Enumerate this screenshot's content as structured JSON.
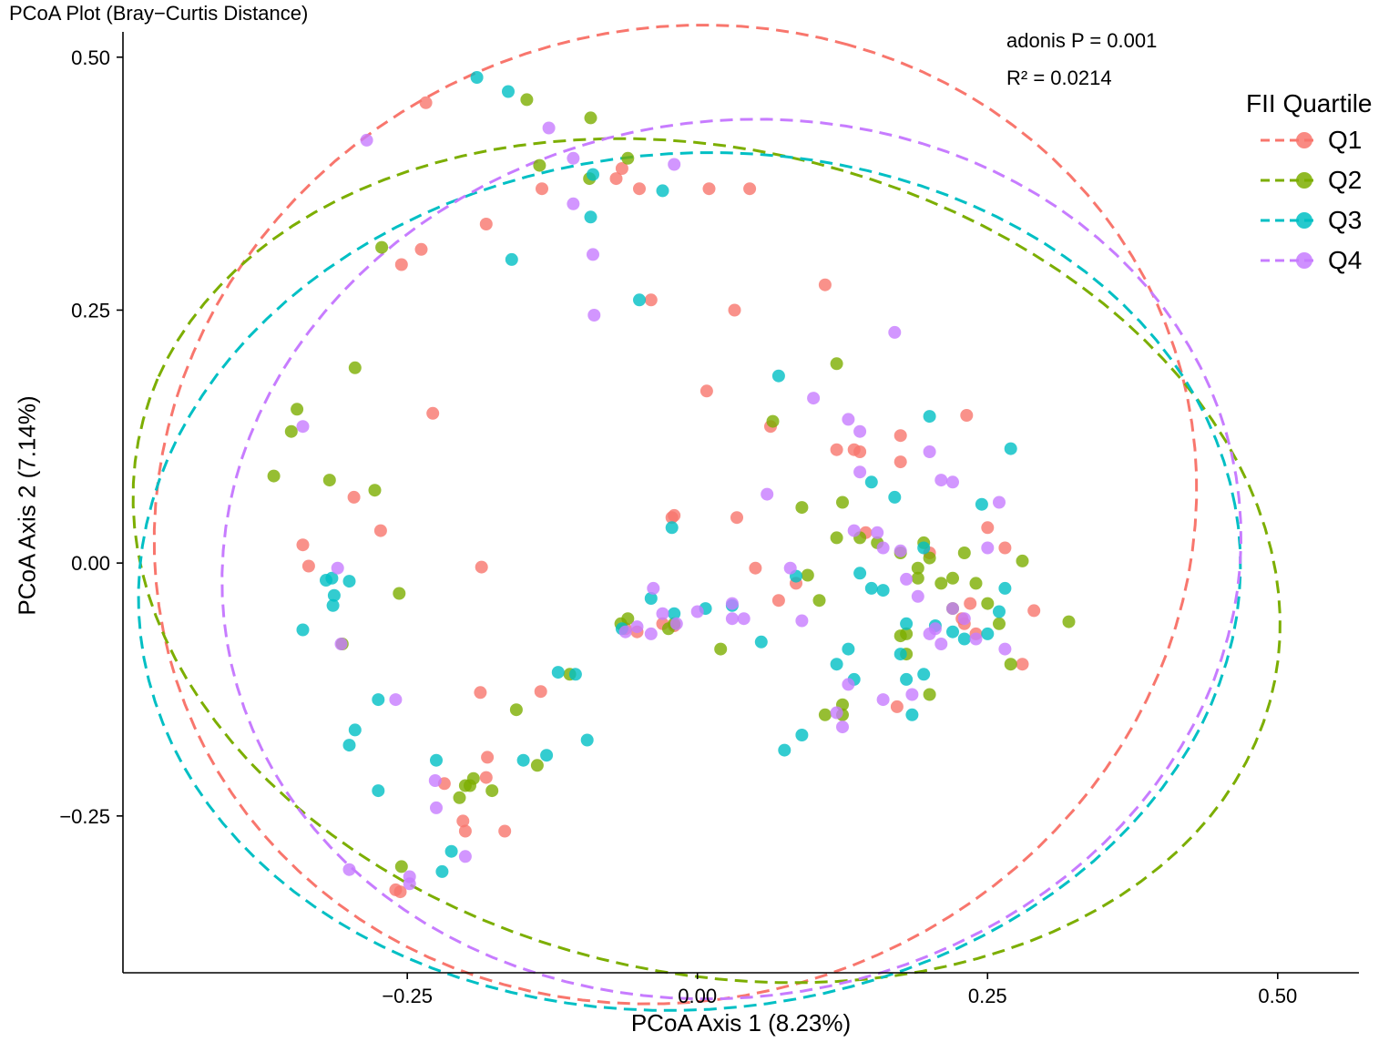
{
  "chart_data": {
    "type": "scatter",
    "title": "PCoA Plot (Bray−Curtis Distance)",
    "xlabel": "PCoA Axis 1 (8.23%)",
    "ylabel": "PCoA Axis 2 (7.14%)",
    "xlim": [
      -0.495,
      0.57
    ],
    "ylim": [
      -0.405,
      0.525
    ],
    "xticks": [
      -0.25,
      0.0,
      0.25,
      0.5
    ],
    "xtick_labels": [
      "−0.25",
      "0.00",
      "0.25",
      "0.50"
    ],
    "yticks": [
      -0.25,
      0.0,
      0.25,
      0.5
    ],
    "ytick_labels": [
      "−0.25",
      "0.00",
      "0.25",
      "0.50"
    ],
    "grid": false,
    "annotations": [
      "adonis P = 0.001",
      "R² = 0.0214"
    ],
    "legend": {
      "title": "FII Quartile",
      "position": "right"
    },
    "series": [
      {
        "name": "Q1",
        "color": "#F8766D",
        "x": [
          -0.234,
          -0.182,
          -0.238,
          -0.255,
          -0.228,
          -0.296,
          -0.34,
          -0.335,
          -0.273,
          -0.186,
          -0.187,
          -0.181,
          -0.182,
          -0.218,
          -0.202,
          -0.2,
          -0.166,
          -0.135,
          -0.256,
          -0.26,
          -0.134,
          -0.07,
          -0.065,
          -0.05,
          -0.062,
          -0.052,
          -0.04,
          0.01,
          0.008,
          0.032,
          0.045,
          0.11,
          0.063,
          -0.022,
          -0.02,
          0.034,
          0.05,
          0.085,
          0.07,
          0.12,
          0.135,
          0.14,
          0.145,
          0.175,
          0.172,
          0.232,
          0.235,
          0.228,
          0.24,
          0.25,
          0.265,
          0.29,
          0.28,
          0.175,
          0.2,
          -0.02,
          -0.03,
          0.23
        ],
        "y": [
          0.455,
          0.335,
          0.31,
          0.295,
          0.148,
          0.065,
          0.018,
          -0.003,
          0.032,
          -0.004,
          -0.128,
          -0.192,
          -0.212,
          -0.218,
          -0.255,
          -0.265,
          -0.265,
          -0.127,
          -0.325,
          -0.323,
          0.37,
          0.38,
          0.39,
          0.37,
          -0.065,
          -0.068,
          0.26,
          0.37,
          0.17,
          0.25,
          0.37,
          0.275,
          0.135,
          0.045,
          0.047,
          0.045,
          -0.005,
          -0.02,
          -0.037,
          0.112,
          0.112,
          0.11,
          0.03,
          0.126,
          -0.142,
          0.146,
          -0.04,
          -0.055,
          -0.07,
          0.035,
          0.015,
          -0.047,
          -0.1,
          0.1,
          0.01,
          -0.062,
          -0.06,
          -0.06
        ]
      },
      {
        "name": "Q2",
        "color": "#7CAE00",
        "x": [
          -0.092,
          -0.147,
          -0.06,
          -0.093,
          -0.136,
          -0.272,
          -0.295,
          -0.345,
          -0.35,
          -0.365,
          -0.317,
          -0.278,
          -0.257,
          -0.306,
          -0.156,
          -0.138,
          -0.193,
          -0.2,
          -0.205,
          -0.196,
          -0.177,
          -0.255,
          -0.11,
          -0.06,
          -0.066,
          -0.025,
          -0.02,
          0.02,
          0.065,
          0.09,
          0.12,
          0.125,
          0.12,
          0.095,
          0.105,
          0.14,
          0.155,
          0.175,
          0.18,
          0.19,
          0.195,
          0.2,
          0.23,
          0.22,
          0.25,
          0.28,
          0.32,
          0.26,
          0.27,
          0.24,
          0.2,
          0.21,
          0.19,
          0.22,
          0.175,
          0.18,
          0.125,
          0.11,
          0.125
        ],
        "y": [
          0.44,
          0.458,
          0.4,
          0.38,
          0.393,
          0.312,
          0.193,
          0.152,
          0.13,
          0.086,
          0.082,
          0.072,
          -0.03,
          -0.08,
          -0.145,
          -0.2,
          -0.213,
          -0.22,
          -0.232,
          -0.22,
          -0.225,
          -0.3,
          -0.11,
          -0.055,
          -0.06,
          -0.065,
          -0.06,
          -0.085,
          0.14,
          0.055,
          0.197,
          0.06,
          0.025,
          -0.012,
          -0.037,
          0.025,
          0.02,
          0.01,
          -0.07,
          -0.005,
          0.02,
          0.005,
          0.01,
          -0.015,
          -0.04,
          0.002,
          -0.058,
          -0.06,
          -0.1,
          -0.02,
          -0.13,
          -0.02,
          -0.015,
          -0.045,
          -0.072,
          -0.09,
          -0.15,
          -0.15,
          -0.14
        ]
      },
      {
        "name": "Q3",
        "color": "#00BFC4",
        "x": [
          -0.19,
          -0.163,
          -0.09,
          -0.03,
          -0.092,
          -0.16,
          -0.05,
          -0.32,
          -0.315,
          -0.313,
          -0.314,
          -0.34,
          -0.3,
          -0.3,
          -0.275,
          -0.275,
          -0.295,
          -0.225,
          -0.212,
          -0.22,
          -0.13,
          -0.15,
          -0.12,
          -0.105,
          -0.095,
          -0.065,
          -0.04,
          -0.022,
          -0.02,
          0.007,
          0.03,
          0.055,
          0.07,
          0.085,
          0.09,
          0.075,
          0.12,
          0.14,
          0.15,
          0.16,
          0.15,
          0.135,
          0.13,
          0.17,
          0.175,
          0.18,
          0.185,
          0.2,
          0.22,
          0.23,
          0.245,
          0.26,
          0.265,
          0.27,
          0.205,
          0.195,
          0.18,
          0.195,
          0.25
        ],
        "y": [
          0.48,
          0.466,
          0.384,
          0.368,
          0.342,
          0.3,
          0.26,
          -0.017,
          -0.015,
          -0.032,
          -0.042,
          -0.066,
          -0.018,
          -0.18,
          -0.135,
          -0.225,
          -0.165,
          -0.195,
          -0.285,
          -0.305,
          -0.19,
          -0.195,
          -0.108,
          -0.11,
          -0.175,
          -0.065,
          -0.035,
          0.035,
          -0.05,
          -0.045,
          -0.042,
          -0.078,
          0.185,
          -0.013,
          -0.17,
          -0.185,
          -0.1,
          -0.01,
          -0.025,
          -0.027,
          0.08,
          -0.115,
          -0.085,
          0.065,
          -0.09,
          -0.115,
          -0.15,
          0.145,
          -0.068,
          -0.075,
          0.058,
          -0.048,
          -0.025,
          0.113,
          -0.062,
          -0.11,
          -0.06,
          0.015,
          -0.07
        ]
      },
      {
        "name": "Q4",
        "color": "#C77CFF",
        "x": [
          -0.285,
          -0.128,
          -0.107,
          -0.107,
          -0.09,
          -0.089,
          -0.02,
          -0.34,
          -0.31,
          -0.307,
          -0.26,
          -0.226,
          -0.225,
          -0.2,
          -0.248,
          -0.248,
          -0.3,
          -0.062,
          -0.052,
          -0.04,
          -0.038,
          -0.03,
          -0.018,
          0.0,
          0.03,
          0.03,
          0.04,
          0.06,
          0.08,
          0.09,
          0.1,
          0.13,
          0.14,
          0.14,
          0.135,
          0.155,
          0.16,
          0.17,
          0.175,
          0.18,
          0.19,
          0.2,
          0.21,
          0.22,
          0.26,
          0.23,
          0.24,
          0.25,
          0.265,
          0.21,
          0.2,
          0.205,
          0.22,
          0.185,
          0.16,
          0.125,
          0.12,
          0.13
        ],
        "y": [
          0.418,
          0.43,
          0.4,
          0.355,
          0.305,
          0.245,
          0.394,
          0.135,
          -0.005,
          -0.08,
          -0.135,
          -0.215,
          -0.242,
          -0.29,
          -0.317,
          -0.31,
          -0.303,
          -0.068,
          -0.063,
          -0.07,
          -0.025,
          -0.05,
          -0.06,
          -0.048,
          -0.04,
          -0.055,
          -0.055,
          0.068,
          -0.005,
          -0.057,
          0.163,
          0.142,
          0.13,
          0.09,
          0.032,
          0.03,
          0.015,
          0.228,
          0.012,
          -0.016,
          -0.033,
          0.11,
          0.082,
          0.08,
          0.06,
          -0.055,
          -0.075,
          0.015,
          -0.085,
          -0.08,
          -0.07,
          -0.065,
          -0.045,
          -0.13,
          -0.135,
          -0.162,
          -0.148,
          -0.12
        ]
      }
    ]
  }
}
